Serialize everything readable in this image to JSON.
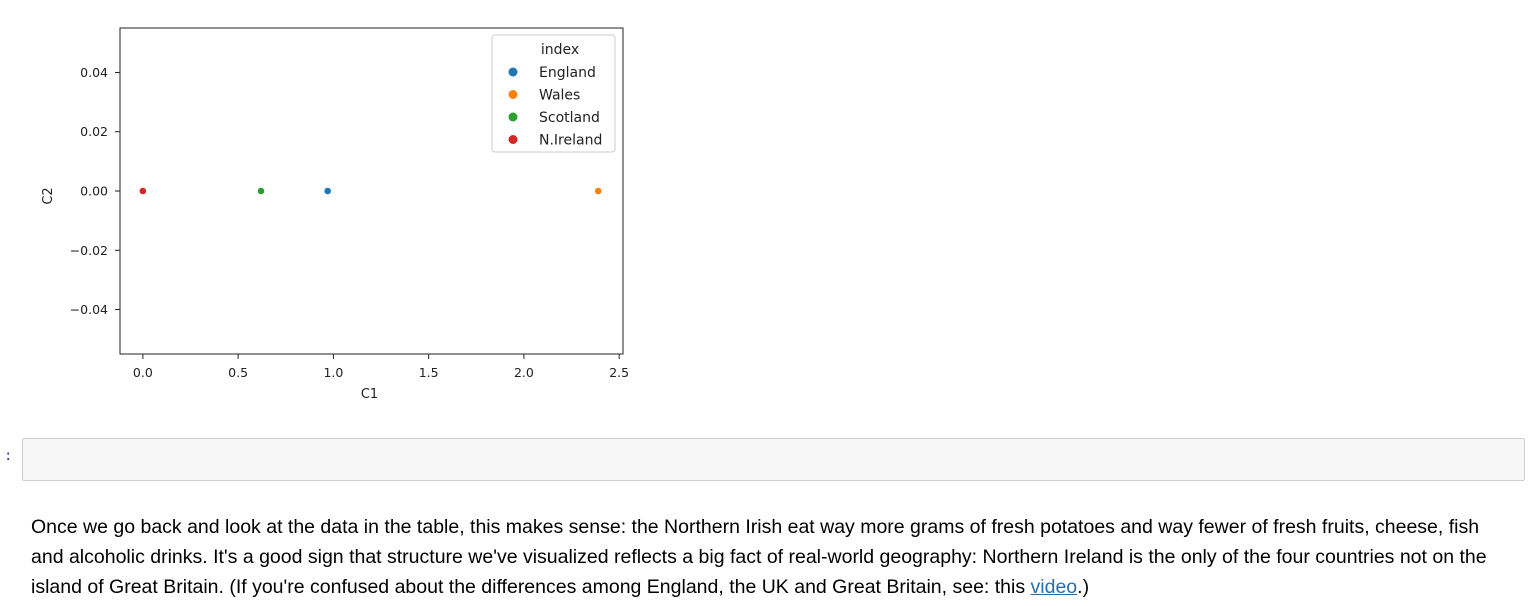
{
  "chart_data": {
    "type": "scatter",
    "xlabel": "C1",
    "ylabel": "C2",
    "xlim": [
      -0.12,
      2.52
    ],
    "ylim": [
      -0.055,
      0.055
    ],
    "x_ticks": [
      "0.0",
      "0.5",
      "1.0",
      "1.5",
      "2.0",
      "2.5"
    ],
    "x_tick_values": [
      0.0,
      0.5,
      1.0,
      1.5,
      2.0,
      2.5
    ],
    "y_ticks": [
      "0.04",
      "0.02",
      "0.00",
      "−0.02",
      "−0.04"
    ],
    "y_tick_values": [
      0.04,
      0.02,
      0.0,
      -0.02,
      -0.04
    ],
    "grid": false,
    "legend": {
      "title": "index",
      "placement": "top-right",
      "entries": [
        "England",
        "Wales",
        "Scotland",
        "N.Ireland"
      ]
    },
    "series": [
      {
        "name": "England",
        "x": 0.97,
        "y": 0.0,
        "color": "#1f77b4"
      },
      {
        "name": "Wales",
        "x": 2.39,
        "y": 0.0,
        "color": "#ff7f0e"
      },
      {
        "name": "Scotland",
        "x": 0.62,
        "y": 0.0,
        "color": "#2ca02c"
      },
      {
        "name": "N.Ireland",
        "x": 0.0,
        "y": 0.0,
        "color": "#d62728"
      }
    ]
  },
  "cell": {
    "prompt": ":",
    "code": ""
  },
  "markdown": {
    "text_before_link": "Once we go back and look at the data in the table, this makes sense: the Northern Irish eat way more grams of fresh potatoes and way fewer of fresh fruits, cheese, fish and alcoholic drinks. It's a good sign that structure we've visualized reflects a big fact of real-world geography: Northern Ireland is the only of the four countries not on the island of Great Britain. (If you're confused about the differences among England, the UK and Great Britain, see: this ",
    "link_text": "video",
    "text_after_link": ".)"
  }
}
